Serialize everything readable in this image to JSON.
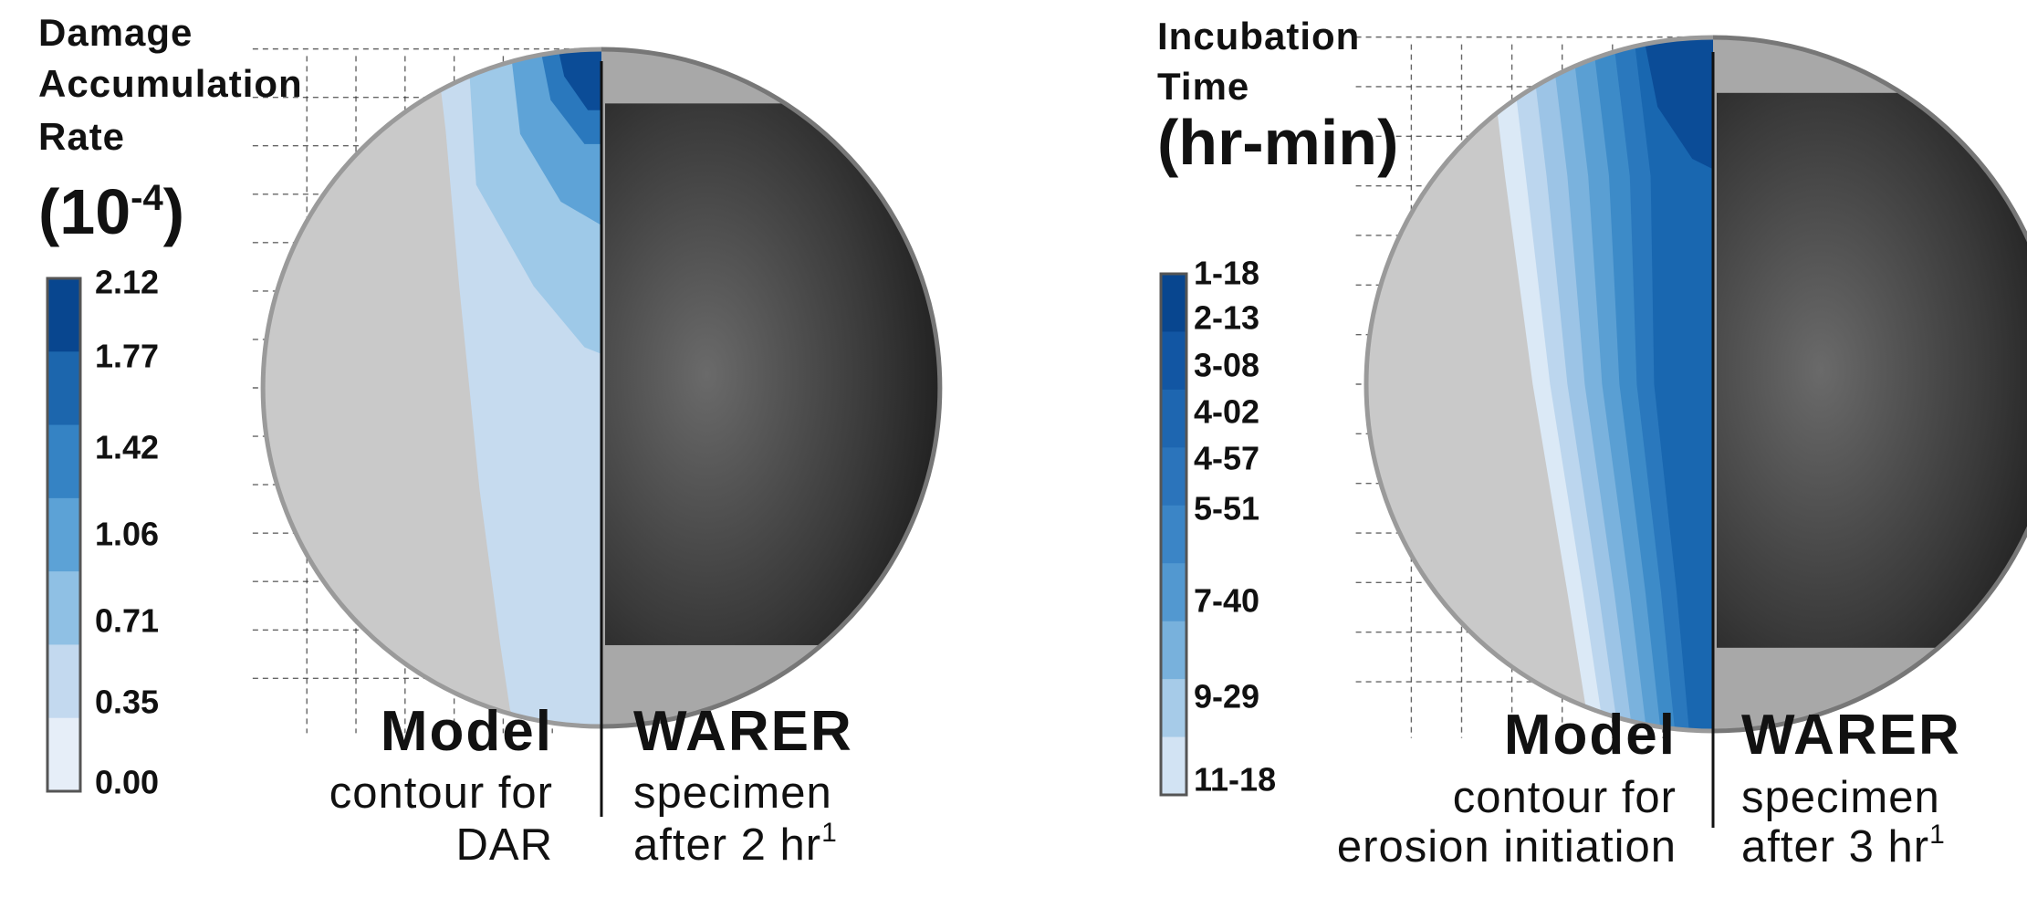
{
  "panels": [
    {
      "legend": {
        "title_lines": [
          "Damage",
          "Accumulation",
          "Rate"
        ],
        "unit": {
          "open": "(10",
          "exponent": "-4",
          "close": ")"
        },
        "levels": [
          "2.12",
          "1.77",
          "1.42",
          "1.06",
          "0.71",
          "0.35",
          "0.00"
        ]
      },
      "left_caption": {
        "title": "Model",
        "lines": [
          "contour for",
          "DAR"
        ]
      },
      "right_caption": {
        "title": "WARER",
        "lines": [
          "specimen",
          "after 2 hr"
        ],
        "superscript": "1"
      }
    },
    {
      "legend": {
        "title_lines": [
          "Incubation",
          "Time"
        ],
        "unit": {
          "open": "(hr-min)"
        },
        "levels": [
          "1-18",
          "2-13",
          "3-08",
          "4-02",
          "4-57",
          "5-51",
          "7-40",
          "9-29",
          "11-18"
        ]
      },
      "left_caption": {
        "title": "Model",
        "lines": [
          "contour for",
          "erosion initiation"
        ]
      },
      "right_caption": {
        "title": "WARER",
        "lines": [
          "specimen",
          "after 3 hr"
        ],
        "superscript": "1"
      }
    }
  ]
}
